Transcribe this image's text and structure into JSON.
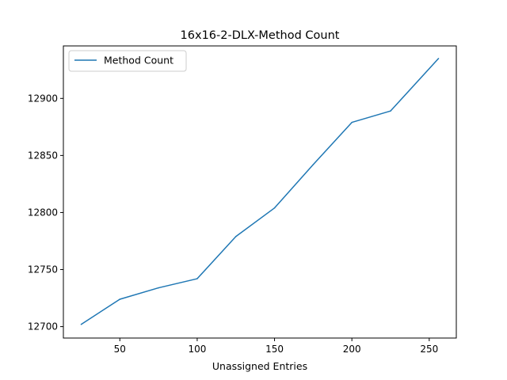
{
  "chart_data": {
    "type": "line",
    "title": "16x16-2-DLX-Method Count",
    "xlabel": "Unassigned Entries",
    "ylabel": "",
    "xlim": [
      13.5,
      267.5
    ],
    "ylim": [
      12690,
      12946
    ],
    "xticks": [
      50,
      100,
      150,
      200,
      250
    ],
    "yticks": [
      12700,
      12750,
      12800,
      12850,
      12900
    ],
    "legend_position": "top-left",
    "grid": false,
    "series": [
      {
        "name": "Method Count",
        "color": "#1f77b4",
        "x": [
          25,
          50,
          75,
          100,
          125,
          150,
          175,
          200,
          225,
          256
        ],
        "y": [
          12702,
          12724,
          12734,
          12742,
          12779,
          12804,
          12842,
          12879,
          12889,
          12935
        ]
      }
    ]
  }
}
